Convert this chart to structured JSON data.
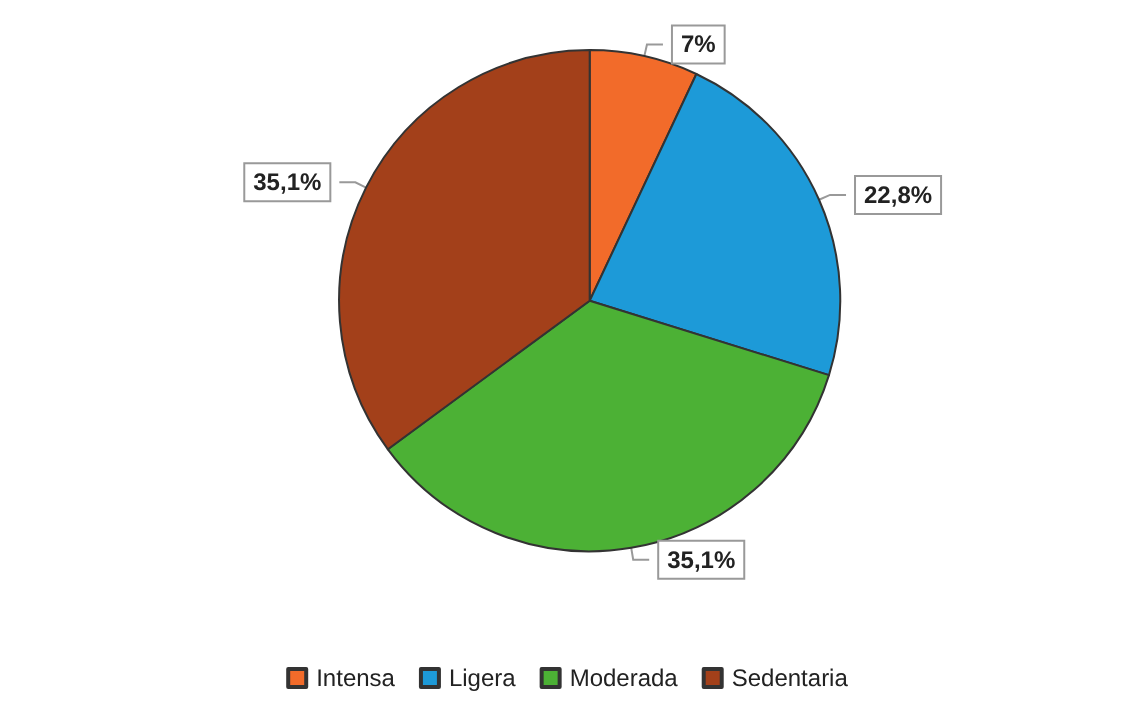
{
  "chart_data": {
    "type": "pie",
    "categories": [
      "Intensa",
      "Ligera",
      "Moderada",
      "Sedentaria"
    ],
    "values": [
      7,
      22.8,
      35.1,
      35.1
    ],
    "colors": [
      "#f26b2a",
      "#1d9ad8",
      "#4cb135",
      "#a3401a"
    ],
    "value_labels": [
      "7%",
      "22,8%",
      "35,1%",
      "35,1%"
    ],
    "legend": "bottom"
  }
}
